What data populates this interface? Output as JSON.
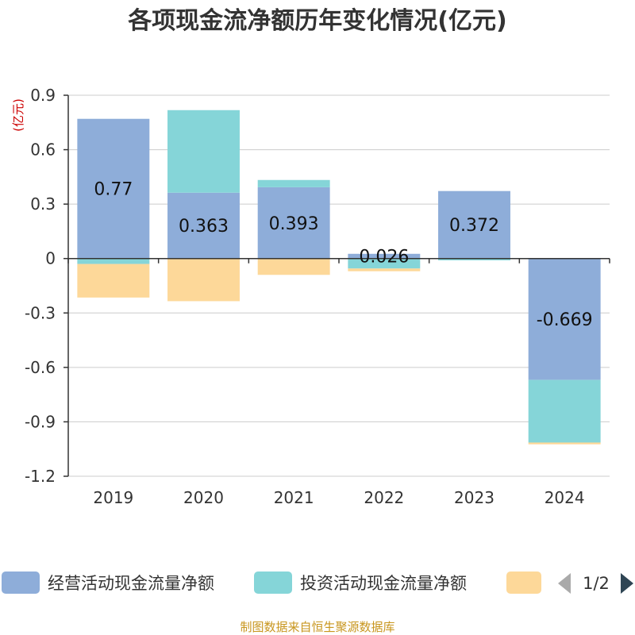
{
  "title": "各项现金流净额历年变化情况(亿元)",
  "source": "制图数据来自恒生聚源数据库",
  "colors": {
    "series_op": "#8eadd9",
    "series_inv": "#85d5d8",
    "series_fin": "#fdd899",
    "grid": "#cccccc",
    "axis": "#333333",
    "pager_active": "#2f4554",
    "pager_inactive": "#aaaaaa"
  },
  "legend": {
    "page_indicator": "1/2",
    "prev_icon": "triangle-left-icon",
    "next_icon": "triangle-right-icon"
  },
  "chart_data": {
    "type": "bar",
    "stacked": true,
    "title": "各项现金流净额历年变化情况(亿元)",
    "ylabel": "(亿元)",
    "ylim": [
      -1.2,
      0.9
    ],
    "yticks": [
      0.9,
      0.6,
      0.3,
      0,
      -0.3,
      -0.6,
      -0.9,
      -1.2
    ],
    "ytick_labels": [
      "0.9",
      "0.6",
      "0.3",
      "0",
      "-0.3",
      "-0.6",
      "-0.9",
      "-1.2"
    ],
    "grid": true,
    "legend_position": "bottom",
    "categories": [
      "2019",
      "2020",
      "2021",
      "2022",
      "2023",
      "2024"
    ],
    "series": [
      {
        "name": "经营活动现金流量净额",
        "values": [
          0.77,
          0.363,
          0.393,
          0.026,
          0.372,
          -0.669
        ],
        "data_labels": [
          "0.77",
          "0.363",
          "0.393",
          "0.026",
          "0.372",
          "-0.669"
        ]
      },
      {
        "name": "投资活动现金流量净额",
        "values": [
          -0.03,
          0.455,
          0.04,
          -0.055,
          -0.01,
          -0.345
        ]
      },
      {
        "name": "",
        "values": [
          -0.185,
          -0.235,
          -0.09,
          -0.015,
          0,
          -0.01
        ]
      }
    ]
  }
}
